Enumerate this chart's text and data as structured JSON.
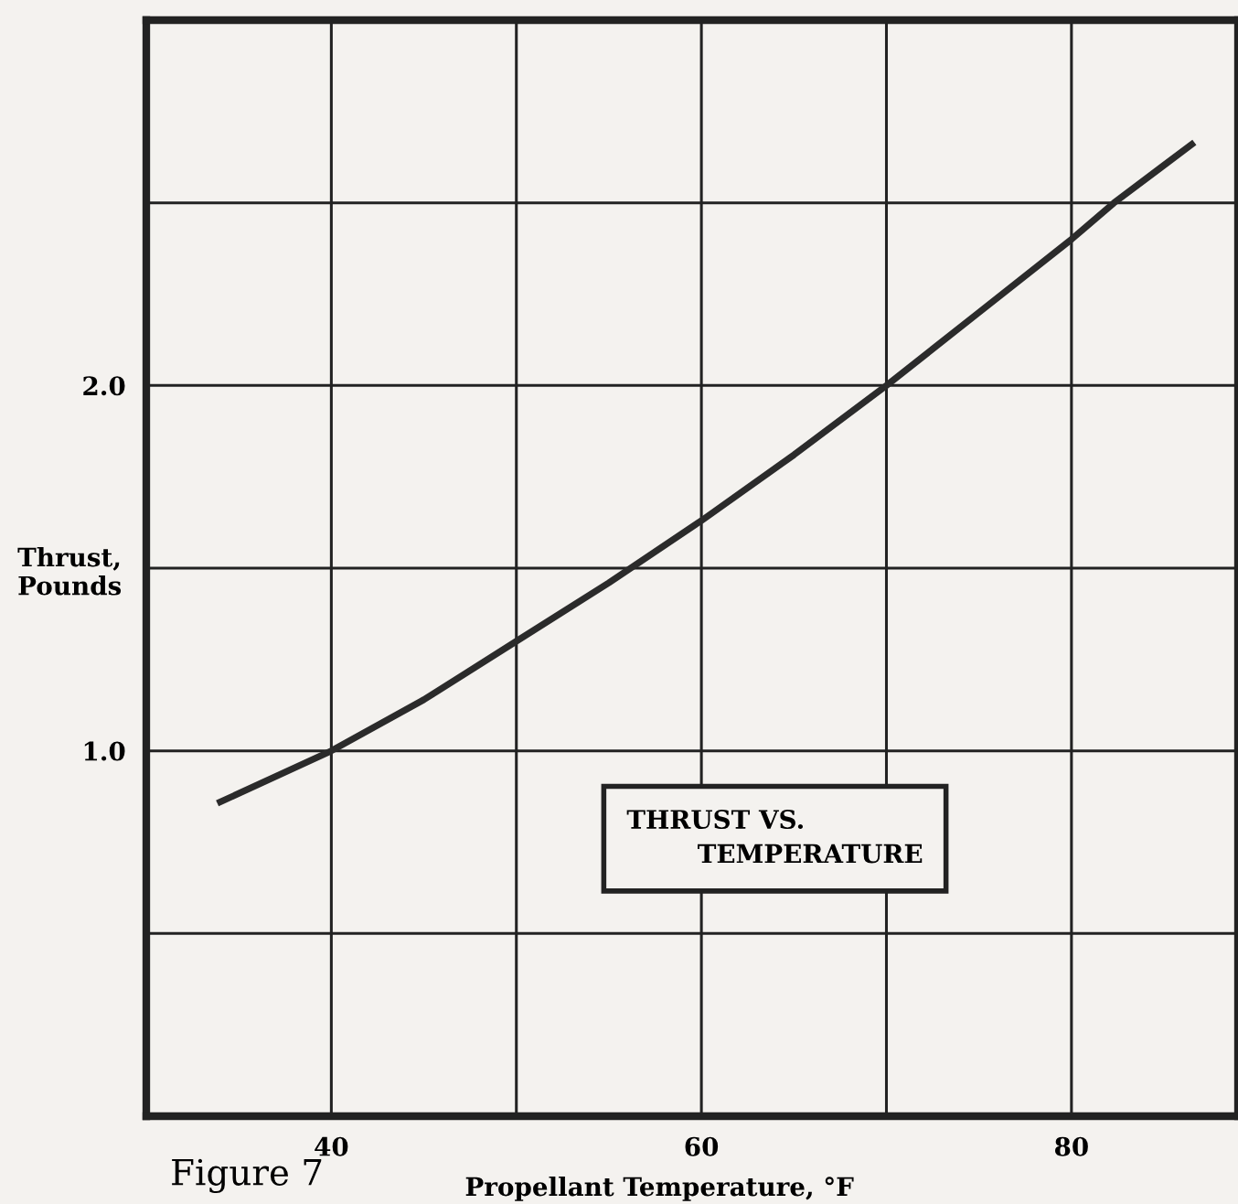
{
  "chart_data": {
    "type": "line",
    "xlabel": "Propellant Temperature, °F",
    "ylabel": "Thrust,\nPounds",
    "annotations": [
      "THRUST VS.\n        TEMPERATURE",
      "Figure 7"
    ],
    "x": [
      34,
      40,
      45,
      50,
      55,
      60,
      65,
      70,
      75,
      80,
      82.3,
      86.5
    ],
    "series": [
      {
        "color": "#2b2b2b",
        "values": [
          0.86,
          1.0,
          1.14,
          1.3,
          1.46,
          1.63,
          1.81,
          2.0,
          2.2,
          2.4,
          2.5,
          2.66
        ]
      }
    ],
    "xlim": [
      30,
      89
    ],
    "ylim": [
      0,
      3
    ],
    "xticks": [
      {
        "value": 30,
        "label": null
      },
      40,
      {
        "value": 50,
        "label": null
      },
      60,
      {
        "value": 70,
        "label": null
      },
      80
    ],
    "yticks": [
      {
        "value": 0,
        "label": null
      },
      {
        "value": 0.5,
        "label": null
      },
      {
        "value": 1,
        "label": "1.0"
      },
      {
        "value": 1.5,
        "label": null
      },
      {
        "value": 2,
        "label": "2.0"
      },
      {
        "value": 2.5,
        "label": null
      },
      {
        "value": 3,
        "label": null
      }
    ],
    "grid": true,
    "marker": "none",
    "line_style": "solid"
  }
}
